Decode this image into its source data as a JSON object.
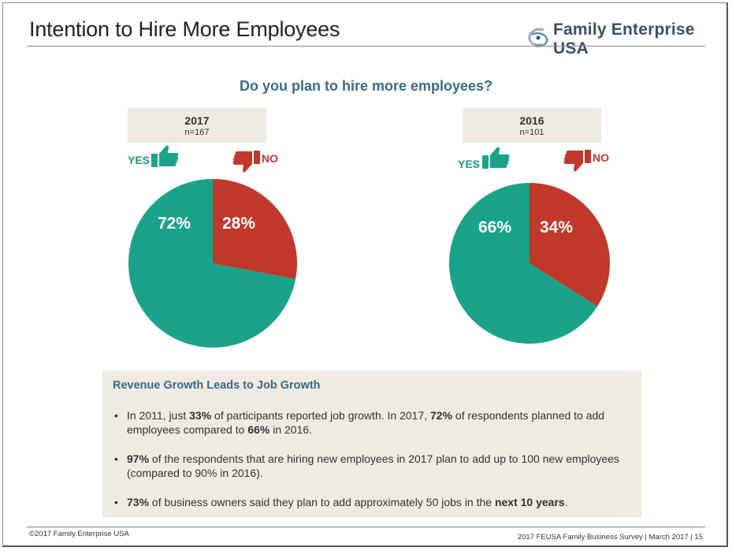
{
  "slide": {
    "title": "Intention to Hire More Employees",
    "logo_text": "Family Enterprise USA",
    "question": "Do you plan to hire more employees?"
  },
  "colors": {
    "yes": "#1aa38a",
    "no": "#c0392b",
    "panel": "#efebe3",
    "accent": "#3b6a86"
  },
  "chart_data": [
    {
      "type": "pie",
      "title": "2017",
      "subtitle": "n=167",
      "labels": [
        "YES",
        "NO"
      ],
      "values": [
        72,
        28
      ],
      "value_labels": [
        "72%",
        "28%"
      ]
    },
    {
      "type": "pie",
      "title": "2016",
      "subtitle": "n=101",
      "labels": [
        "YES",
        "NO"
      ],
      "values": [
        66,
        34
      ],
      "value_labels": [
        "66%",
        "34%"
      ]
    }
  ],
  "info_box": {
    "title": "Revenue Growth Leads to Job Growth",
    "bullets": [
      [
        "In 2011, just ",
        "33%",
        " of participants reported job growth. In 2017, ",
        "72%",
        " of respondents planned to add employees compared to ",
        "66%",
        " in 2016."
      ],
      [
        "",
        "97%",
        " of the respondents that are hiring new employees in 2017 plan to add up to 100 new employees (compared to 90% in 2016)."
      ],
      [
        "",
        "73%",
        " of business owners said they plan to add approximately 50 jobs in the ",
        "next 10 years",
        ""
      ]
    ]
  },
  "footer": {
    "copyright": "©2017 Family Enterprise USA",
    "source": "2017 FEUSA Family Business Survey  |  March 2017  | 15"
  }
}
